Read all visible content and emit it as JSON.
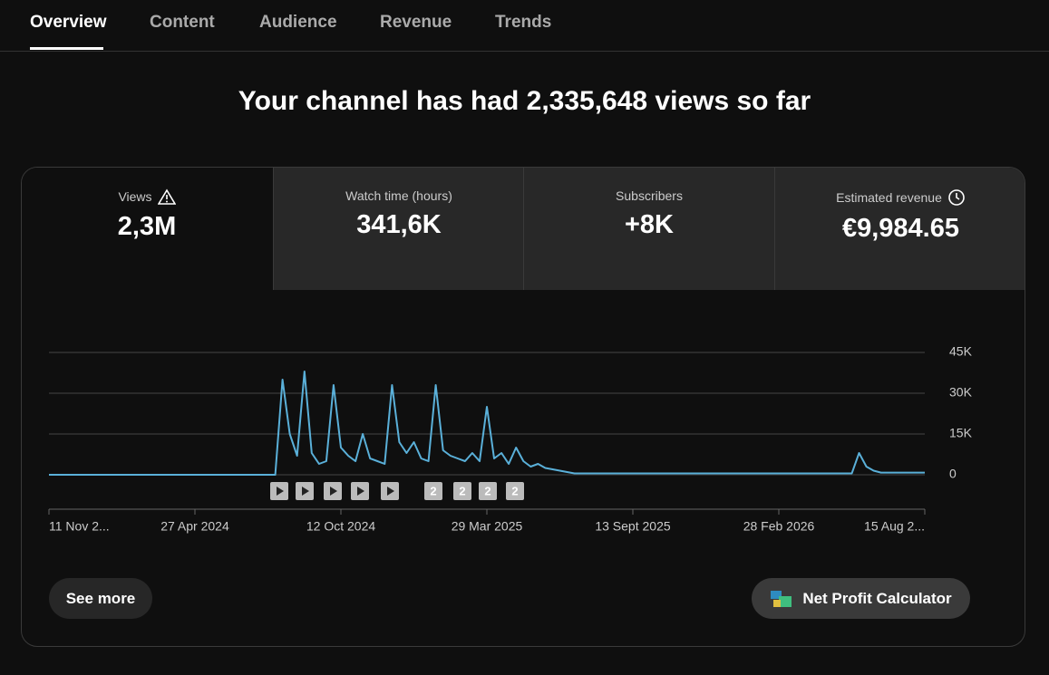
{
  "tabs": [
    "Overview",
    "Content",
    "Audience",
    "Revenue",
    "Trends"
  ],
  "headline": "Your channel has had 2,335,648 views so far",
  "metrics": [
    {
      "label": "Views",
      "value": "2,3M"
    },
    {
      "label": "Watch time (hours)",
      "value": "341,6K"
    },
    {
      "label": "Subscribers",
      "value": "+8K"
    },
    {
      "label": "Estimated revenue",
      "value": "€9,984.65"
    }
  ],
  "chart": {
    "type": "line",
    "color": "#5ab0d9",
    "ylim": [
      0,
      45000
    ],
    "yticks": [
      {
        "value": 0,
        "label": "0"
      },
      {
        "value": 15000,
        "label": "15K"
      },
      {
        "value": 30000,
        "label": "30K"
      },
      {
        "value": 45000,
        "label": "45K"
      }
    ],
    "x_labels": [
      "11 Nov 2...",
      "27 Apr 2024",
      "12 Oct 2024",
      "29 Mar 2025",
      "13 Sept 2025",
      "28 Feb 2026",
      "15 Aug 2..."
    ],
    "values": [
      0,
      0,
      0,
      0,
      0,
      0,
      0,
      0,
      0,
      0,
      0,
      0,
      0,
      0,
      0,
      0,
      0,
      0,
      0,
      0,
      0,
      0,
      0,
      0,
      0,
      0,
      0,
      0,
      0,
      0,
      0,
      0,
      35000,
      15000,
      7000,
      38000,
      8000,
      4000,
      5000,
      33000,
      10000,
      7000,
      5000,
      15000,
      6000,
      5000,
      4000,
      33000,
      12000,
      8000,
      12000,
      6000,
      5000,
      33000,
      9000,
      7000,
      6000,
      5000,
      8000,
      5000,
      25000,
      6000,
      8000,
      4000,
      10000,
      5000,
      3000,
      4000,
      2500,
      2000,
      1500,
      1000,
      500,
      500,
      500,
      500,
      500,
      500,
      500,
      500,
      500,
      500,
      500,
      500,
      500,
      500,
      500,
      500,
      500,
      500,
      500,
      500,
      500,
      500,
      500,
      500,
      500,
      500,
      500,
      500,
      500,
      500,
      500,
      500,
      500,
      500,
      500,
      500,
      500,
      500,
      500,
      8000,
      3000,
      1500,
      800,
      800,
      800,
      800,
      800,
      800,
      800
    ],
    "annotations": [
      "2",
      "2",
      "2",
      "2"
    ]
  },
  "buttons": {
    "see_more": "See more",
    "calculator": "Net Profit Calculator"
  }
}
